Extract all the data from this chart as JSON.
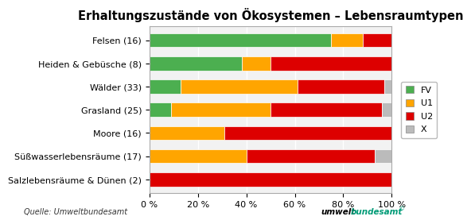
{
  "title": "Erhaltungszustände von Ökosystemen – Lebensraumtypen",
  "categories": [
    "Salzlebensräume & Dünen (2)",
    "Süßwasserlebensräume (17)",
    "Moore (16)",
    "Grasland (25)",
    "Wälder (33)",
    "Heiden & Gebüsche (8)",
    "Felsen (16)"
  ],
  "series": {
    "FV": [
      0,
      0,
      0,
      9,
      13,
      38,
      75
    ],
    "U1": [
      0,
      40,
      31,
      41,
      48,
      12,
      13
    ],
    "U2": [
      100,
      53,
      69,
      46,
      36,
      50,
      12
    ],
    "X": [
      0,
      7,
      0,
      4,
      3,
      0,
      0
    ]
  },
  "colors": {
    "FV": "#4CAF50",
    "U1": "#FFA500",
    "U2": "#DD0000",
    "X": "#BBBBBB"
  },
  "xlabel_ticks": [
    "0 %",
    "20 %",
    "40 %",
    "60 %",
    "80 %",
    "100 %"
  ],
  "xlabel_vals": [
    0,
    20,
    40,
    60,
    80,
    100
  ],
  "source_text": "Quelle: Umweltbundesamt",
  "background_color": "#FFFFFF",
  "plot_bg_color": "#F2F2F2",
  "grid_color": "#FFFFFF",
  "border_color": "#AAAAAA",
  "title_fontsize": 10.5,
  "label_fontsize": 8,
  "tick_fontsize": 8,
  "legend_fontsize": 8
}
